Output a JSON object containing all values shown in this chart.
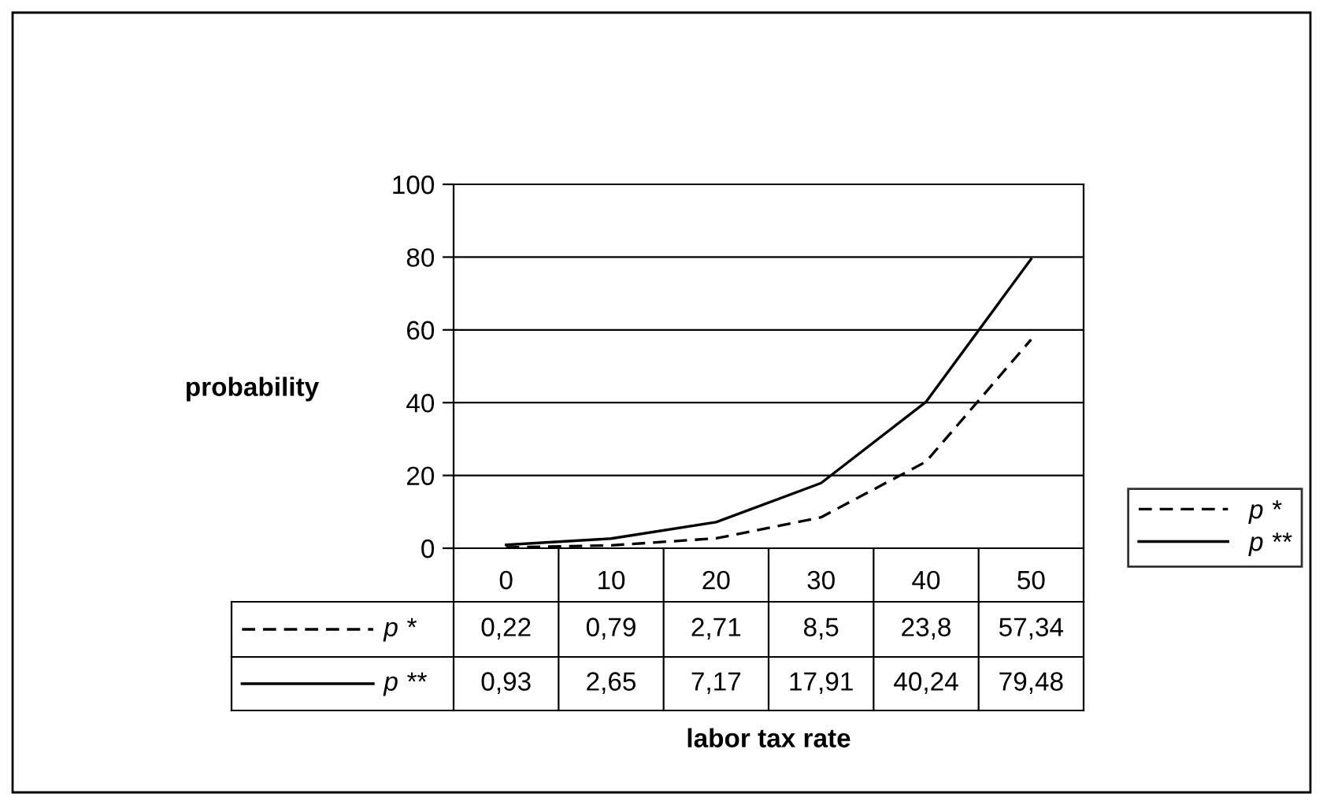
{
  "chart_data": {
    "type": "line",
    "annotations": [
      "labor tax rate"
    ],
    "ylabel": "probability",
    "categories": [
      "0",
      "10",
      "20",
      "30",
      "40",
      "50"
    ],
    "series": [
      {
        "name": "p *",
        "color": "#000000",
        "line_style": "dashed",
        "values": [
          0.22,
          0.79,
          2.71,
          8.5,
          23.8,
          57.34
        ],
        "value_labels": [
          "0,22",
          "0,79",
          "2,71",
          "8,5",
          "23,8",
          "57,34"
        ]
      },
      {
        "name": "p **",
        "color": "#000000",
        "line_style": "solid",
        "values": [
          0.93,
          2.65,
          7.17,
          17.91,
          40.24,
          79.48
        ],
        "value_labels": [
          "0,93",
          "2,65",
          "7,17",
          "17,91",
          "40,24",
          "79,48"
        ]
      }
    ],
    "ylim": [
      0,
      100
    ],
    "yticks": [
      0,
      20,
      40,
      60,
      80,
      100
    ],
    "grid": "y",
    "legend": "right",
    "marker": "none"
  }
}
